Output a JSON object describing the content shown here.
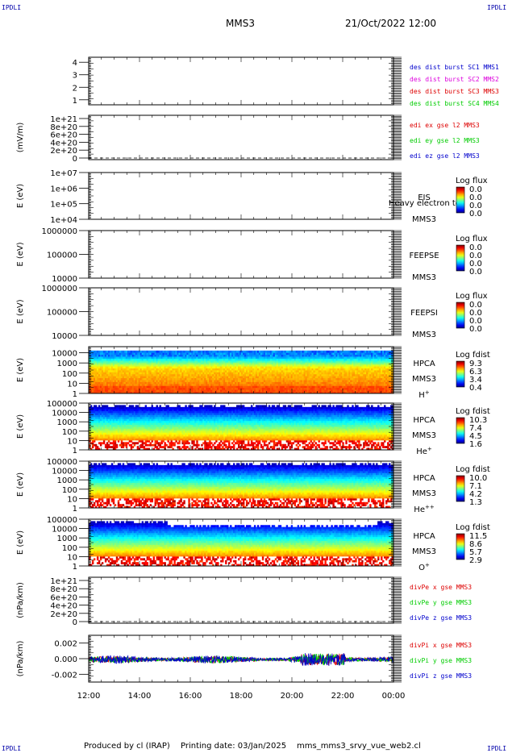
{
  "header": {
    "mission": "MMS3",
    "datetime": "21/Oct/2022 12:00",
    "corner_label": "IPDLI"
  },
  "footer": {
    "produced_by": "Produced by cl (IRAP)",
    "printing_date": "Printing date: 03/Jan/2025",
    "script_name": "mms_mms3_srvy_vue_web2.cl"
  },
  "time_axis": {
    "ticks": [
      "12:00",
      "14:00",
      "16:00",
      "18:00",
      "20:00",
      "22:00",
      "00:00"
    ]
  },
  "colors": {
    "blue": "#0000cc",
    "magenta": "#dd00dd",
    "red": "#dd0000",
    "green": "#00cc00"
  },
  "panels": [
    {
      "id": "dist-burst",
      "type": "line",
      "ylabel": "",
      "yticks": [
        "4",
        "3",
        "2",
        "1"
      ],
      "ylim": [
        0.6,
        4.4
      ],
      "legend": [
        {
          "text": "des dist burst SC1 MMS1",
          "color": "#0000cc"
        },
        {
          "text": "des dist burst SC2 MMS2",
          "color": "#dd00dd"
        },
        {
          "text": "des dist burst SC3 MMS3",
          "color": "#dd0000"
        },
        {
          "text": "des dist burst SC4 MMS4",
          "color": "#00cc00"
        }
      ]
    },
    {
      "id": "edi-e",
      "type": "line",
      "ylabel": "(mV/m)",
      "yticks": [
        "1e+21",
        "8e+20",
        "6e+20",
        "4e+20",
        "2e+20",
        "0"
      ],
      "ylim": [
        0,
        1e+21
      ],
      "zero_line": true,
      "legend": [
        {
          "text": "edi ex gse l2 MMS3",
          "color": "#dd0000"
        },
        {
          "text": "edi ey gse l2 MMS3",
          "color": "#00cc00"
        },
        {
          "text": "edi ez gse l2 MMS3",
          "color": "#0000cc"
        }
      ]
    },
    {
      "id": "eis",
      "type": "heatmap",
      "ylabel": "E (eV)",
      "yticks": [
        "1e+07",
        "1e+06",
        "1e+05",
        "1e+04"
      ],
      "ylim": [
        10000.0,
        10000000.0
      ],
      "yscale": "log",
      "side_labels": [
        "EIS",
        "MMS3"
      ],
      "overlay_text": "Heavy electron to",
      "cbar_title": "Log flux",
      "cbar_ticks": [
        "0.0",
        "0.0",
        "0.0",
        "0.0"
      ]
    },
    {
      "id": "feepse",
      "type": "heatmap",
      "ylabel": "E (eV)",
      "yticks": [
        "1000000",
        "100000",
        "10000"
      ],
      "ylim": [
        10000.0,
        1000000.0
      ],
      "yscale": "log",
      "side_labels": [
        "FEEPSE",
        "MMS3"
      ],
      "cbar_title": "Log flux",
      "cbar_ticks": [
        "0.0",
        "0.0",
        "0.0",
        "0.0"
      ]
    },
    {
      "id": "feepsi",
      "type": "heatmap",
      "ylabel": "E (eV)",
      "yticks": [
        "1000000",
        "100000",
        "10000"
      ],
      "ylim": [
        10000.0,
        1000000.0
      ],
      "yscale": "log",
      "side_labels": [
        "FEEPSI",
        "MMS3"
      ],
      "cbar_title": "Log flux",
      "cbar_ticks": [
        "0.0",
        "0.0",
        "0.0",
        "0.0"
      ]
    },
    {
      "id": "hpca-h",
      "type": "heatmap",
      "ylabel": "E (eV)",
      "yticks": [
        "10000",
        "1000",
        "100",
        "10",
        "1"
      ],
      "ylim": [
        1,
        40000
      ],
      "yscale": "log",
      "side_labels": [
        "HPCA",
        "MMS3"
      ],
      "species": "H",
      "species_sup": "+",
      "cbar_title": "Log fdist",
      "cbar_ticks": [
        "9.3",
        "6.3",
        "3.4",
        "0.4"
      ]
    },
    {
      "id": "hpca-he",
      "type": "heatmap",
      "ylabel": "E (eV)",
      "yticks": [
        "100000",
        "10000",
        "1000",
        "100",
        "10",
        "1"
      ],
      "ylim": [
        1,
        100000
      ],
      "yscale": "log",
      "side_labels": [
        "HPCA",
        "MMS3"
      ],
      "species": "He",
      "species_sup": "+",
      "cbar_title": "Log fdist",
      "cbar_ticks": [
        "10.3",
        "7.4",
        "4.5",
        "1.6"
      ]
    },
    {
      "id": "hpca-hepp",
      "type": "heatmap",
      "ylabel": "E (eV)",
      "yticks": [
        "100000",
        "10000",
        "1000",
        "100",
        "10",
        "1"
      ],
      "ylim": [
        1,
        100000
      ],
      "yscale": "log",
      "side_labels": [
        "HPCA",
        "MMS3"
      ],
      "species": "He",
      "species_sup": "++",
      "cbar_title": "Log fdist",
      "cbar_ticks": [
        "10.0",
        "7.1",
        "4.2",
        "1.3"
      ]
    },
    {
      "id": "hpca-o",
      "type": "heatmap",
      "ylabel": "E (eV)",
      "yticks": [
        "100000",
        "10000",
        "1000",
        "100",
        "10",
        "1"
      ],
      "ylim": [
        1,
        100000
      ],
      "yscale": "log",
      "side_labels": [
        "HPCA",
        "MMS3"
      ],
      "species": "O",
      "species_sup": "+",
      "cbar_title": "Log fdist",
      "cbar_ticks": [
        "11.5",
        "8.6",
        "5.7",
        "2.9"
      ]
    },
    {
      "id": "divpe",
      "type": "line",
      "ylabel": "(nPa/km)",
      "yticks": [
        "1e+21",
        "8e+20",
        "6e+20",
        "4e+20",
        "2e+20",
        "0"
      ],
      "ylim": [
        0,
        1e+21
      ],
      "zero_line": true,
      "legend": [
        {
          "text": "divPe x gse MMS3",
          "color": "#dd0000"
        },
        {
          "text": "divPe y gse MMS3",
          "color": "#00cc00"
        },
        {
          "text": "divPe z gse MMS3",
          "color": "#0000cc"
        }
      ]
    },
    {
      "id": "divpi",
      "type": "line",
      "ylabel": "(nPa/km)",
      "yticks": [
        "0.002",
        "0.000",
        "-0.002"
      ],
      "ylim": [
        -0.003,
        0.003
      ],
      "legend": [
        {
          "text": "divPi x gse MMS3",
          "color": "#dd0000"
        },
        {
          "text": "divPi y gse MMS3",
          "color": "#00cc00"
        },
        {
          "text": "divPi z gse MMS3",
          "color": "#0000cc"
        }
      ]
    }
  ]
}
